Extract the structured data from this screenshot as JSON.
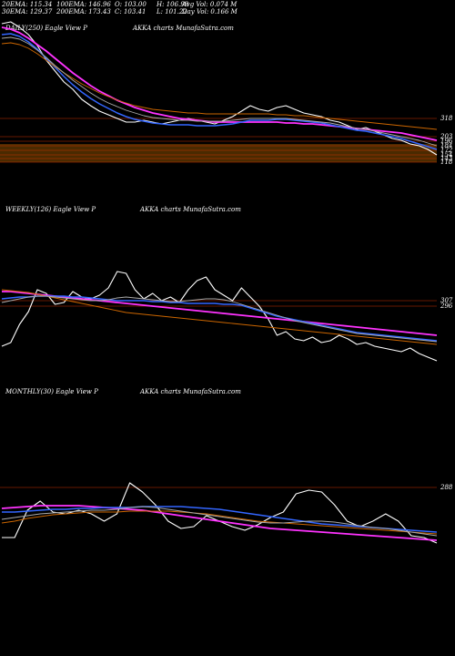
{
  "header": {
    "ema20": "20EMA: 115.34",
    "ema100": "100EMA: 146.96",
    "open": "O: 103.00",
    "high": "H: 106.99",
    "avg_vol": "Avg Vol: 0.074  M",
    "ema30": "30EMA: 129.37",
    "ema200": "200EMA: 173.43",
    "close": "C: 103.41",
    "low": "L: 101.22",
    "day_vol": "Day Vol: 0.166  M"
  },
  "panels": {
    "daily": {
      "label": "DAILY(250) Eagle  View  P",
      "site": "AKKA charts MunafaSutra.com"
    },
    "weekly": {
      "label": "WEEKLY(126) Eagle  View  P",
      "site": "AKKA charts MunafaSutra.com"
    },
    "monthly": {
      "label": "MONTHLY(30) Eagle  View  P",
      "site": "AKKA charts MunafaSutra.com"
    }
  },
  "colors": {
    "background": "#000000",
    "price": "#ffffff",
    "ema_pink": "#ff33ff",
    "ema_blue": "#3366ff",
    "ema_orange": "#cc6600",
    "ema_gray": "#aaaaaa",
    "level_line": "#cc3300",
    "volume_band": "#4a2a00"
  },
  "chart_data": [
    {
      "type": "line",
      "panel": "daily",
      "right_labels": [
        "318",
        "203",
        "196",
        "184",
        "172",
        "154",
        "143",
        "118"
      ],
      "series": [
        {
          "role": "price",
          "values": [
            304,
            306,
            300,
            292,
            280,
            264,
            252,
            240,
            232,
            221,
            214,
            208,
            204,
            200,
            196,
            196,
            198,
            196,
            194,
            196,
            198,
            200,
            198,
            196,
            194,
            198,
            202,
            208,
            214,
            210,
            208,
            212,
            214,
            210,
            206,
            204,
            202,
            198,
            196,
            192,
            188,
            190,
            186,
            182,
            178,
            176,
            172,
            170,
            166,
            160
          ]
        },
        {
          "role": "ema-pink",
          "values": [
            300,
            298,
            294,
            288,
            281,
            274,
            266,
            258,
            250,
            243,
            236,
            230,
            225,
            220,
            216,
            212,
            209,
            206,
            204,
            202,
            200,
            199,
            198,
            197,
            196,
            196,
            196,
            196,
            196,
            196,
            196,
            196,
            195,
            195,
            194,
            194,
            193,
            192,
            191,
            190,
            189,
            188,
            187,
            186,
            185,
            184,
            182,
            180,
            178,
            176
          ]
        },
        {
          "role": "ema-blue",
          "values": [
            292,
            293,
            290,
            284,
            276,
            266,
            256,
            246,
            237,
            229,
            222,
            216,
            211,
            206,
            202,
            199,
            197,
            195,
            194,
            193,
            193,
            193,
            192,
            192,
            192,
            193,
            194,
            196,
            198,
            198,
            198,
            199,
            199,
            198,
            197,
            196,
            195,
            193,
            191,
            189,
            187,
            186,
            184,
            182,
            180,
            178,
            175,
            172,
            169,
            166
          ]
        },
        {
          "role": "ema-orange",
          "values": [
            282,
            283,
            281,
            277,
            271,
            264,
            257,
            250,
            244,
            238,
            233,
            228,
            224,
            220,
            217,
            214,
            212,
            210,
            209,
            208,
            207,
            206,
            206,
            205,
            205,
            205,
            205,
            205,
            205,
            205,
            205,
            204,
            204,
            203,
            203,
            202,
            201,
            200,
            199,
            198,
            197,
            196,
            195,
            194,
            193,
            192,
            191,
            190,
            189,
            188
          ]
        },
        {
          "role": "ema-gray",
          "values": [
            288,
            289,
            287,
            282,
            275,
            267,
            258,
            250,
            242,
            235,
            228,
            222,
            217,
            213,
            209,
            206,
            203,
            201,
            200,
            199,
            198,
            198,
            197,
            197,
            197,
            197,
            198,
            199,
            200,
            200,
            200,
            200,
            200,
            199,
            198,
            197,
            196,
            195,
            193,
            191,
            189,
            188,
            186,
            184,
            182,
            180,
            178,
            176,
            173,
            170
          ]
        }
      ]
    },
    {
      "type": "line",
      "panel": "weekly",
      "right_labels": [
        "307",
        "296"
      ],
      "series": [
        {
          "role": "price",
          "values": [
            88,
            92,
            112,
            126,
            150,
            146,
            134,
            136,
            148,
            142,
            140,
            144,
            152,
            170,
            168,
            150,
            140,
            146,
            138,
            142,
            136,
            150,
            160,
            164,
            150,
            144,
            138,
            152,
            142,
            132,
            118,
            100,
            104,
            96,
            94,
            98,
            92,
            94,
            100,
            96,
            90,
            92,
            88,
            86,
            84,
            82,
            86,
            80,
            76,
            72
          ]
        },
        {
          "role": "ema-pink",
          "values": [
            148,
            148,
            147,
            146,
            145,
            144,
            143,
            142,
            141,
            140,
            139,
            138,
            137,
            136,
            135,
            134,
            133,
            132,
            131,
            130,
            129,
            128,
            127,
            126,
            125,
            124,
            123,
            122,
            121,
            120,
            119,
            118,
            117,
            116,
            115,
            114,
            113,
            112,
            111,
            110,
            109,
            108,
            107,
            106,
            105,
            104,
            103,
            102,
            101,
            100
          ]
        },
        {
          "role": "ema-blue",
          "values": [
            140,
            141,
            142,
            142,
            143,
            143,
            143,
            143,
            142,
            142,
            141,
            140,
            139,
            138,
            138,
            138,
            138,
            137,
            137,
            136,
            136,
            135,
            135,
            135,
            135,
            134,
            134,
            133,
            130,
            127,
            124,
            121,
            119,
            117,
            115,
            113,
            111,
            109,
            107,
            105,
            103,
            102,
            101,
            100,
            99,
            98,
            97,
            96,
            95,
            94
          ]
        },
        {
          "role": "ema-orange",
          "values": [
            150,
            149,
            148,
            147,
            145,
            143,
            141,
            139,
            137,
            135,
            133,
            131,
            129,
            127,
            125,
            124,
            123,
            122,
            121,
            120,
            119,
            118,
            117,
            116,
            115,
            114,
            113,
            112,
            111,
            110,
            109,
            108,
            107,
            106,
            105,
            104,
            103,
            102,
            101,
            100,
            99,
            98,
            97,
            96,
            95,
            94,
            93,
            92,
            91,
            90
          ]
        },
        {
          "role": "ema-gray",
          "values": [
            136,
            138,
            140,
            142,
            143,
            143,
            142,
            141,
            140,
            139,
            138,
            138,
            139,
            141,
            142,
            141,
            140,
            139,
            138,
            137,
            137,
            138,
            139,
            140,
            140,
            139,
            137,
            134,
            131,
            128,
            125,
            122,
            119,
            116,
            114,
            112,
            110,
            108,
            106,
            104,
            102,
            101,
            100,
            99,
            98,
            97,
            96,
            95,
            94,
            93
          ]
        }
      ]
    },
    {
      "type": "line",
      "panel": "monthly",
      "right_labels": [
        "288"
      ],
      "series": [
        {
          "role": "price",
          "values": [
            110,
            110,
            140,
            150,
            138,
            136,
            140,
            136,
            128,
            136,
            170,
            160,
            146,
            128,
            120,
            122,
            134,
            128,
            122,
            118,
            124,
            132,
            138,
            158,
            162,
            160,
            146,
            128,
            122,
            128,
            136,
            128,
            112,
            110,
            104
          ]
        },
        {
          "role": "ema-pink",
          "values": [
            142,
            143,
            144,
            145,
            145,
            145,
            145,
            144,
            143,
            142,
            141,
            140,
            138,
            136,
            134,
            132,
            130,
            128,
            126,
            124,
            122,
            120,
            119,
            118,
            117,
            116,
            115,
            114,
            113,
            112,
            111,
            110,
            109,
            108,
            107
          ]
        },
        {
          "role": "ema-blue",
          "values": [
            138,
            138,
            139,
            140,
            141,
            141,
            142,
            142,
            143,
            143,
            143,
            144,
            144,
            144,
            144,
            143,
            142,
            141,
            139,
            137,
            135,
            133,
            131,
            129,
            127,
            125,
            124,
            123,
            122,
            121,
            120,
            119,
            118,
            117,
            116
          ]
        },
        {
          "role": "ema-orange",
          "values": [
            126,
            128,
            131,
            133,
            135,
            136,
            137,
            138,
            138,
            138,
            139,
            139,
            139,
            139,
            138,
            137,
            136,
            134,
            132,
            130,
            128,
            127,
            126,
            125,
            124,
            123,
            122,
            121,
            120,
            119,
            118,
            117,
            116,
            115,
            114
          ]
        },
        {
          "role": "ema-gray",
          "values": [
            130,
            132,
            134,
            136,
            137,
            138,
            139,
            140,
            140,
            141,
            143,
            144,
            143,
            141,
            139,
            137,
            135,
            133,
            131,
            129,
            127,
            126,
            126,
            127,
            128,
            128,
            127,
            125,
            123,
            121,
            120,
            118,
            116,
            114,
            112
          ]
        }
      ]
    }
  ]
}
